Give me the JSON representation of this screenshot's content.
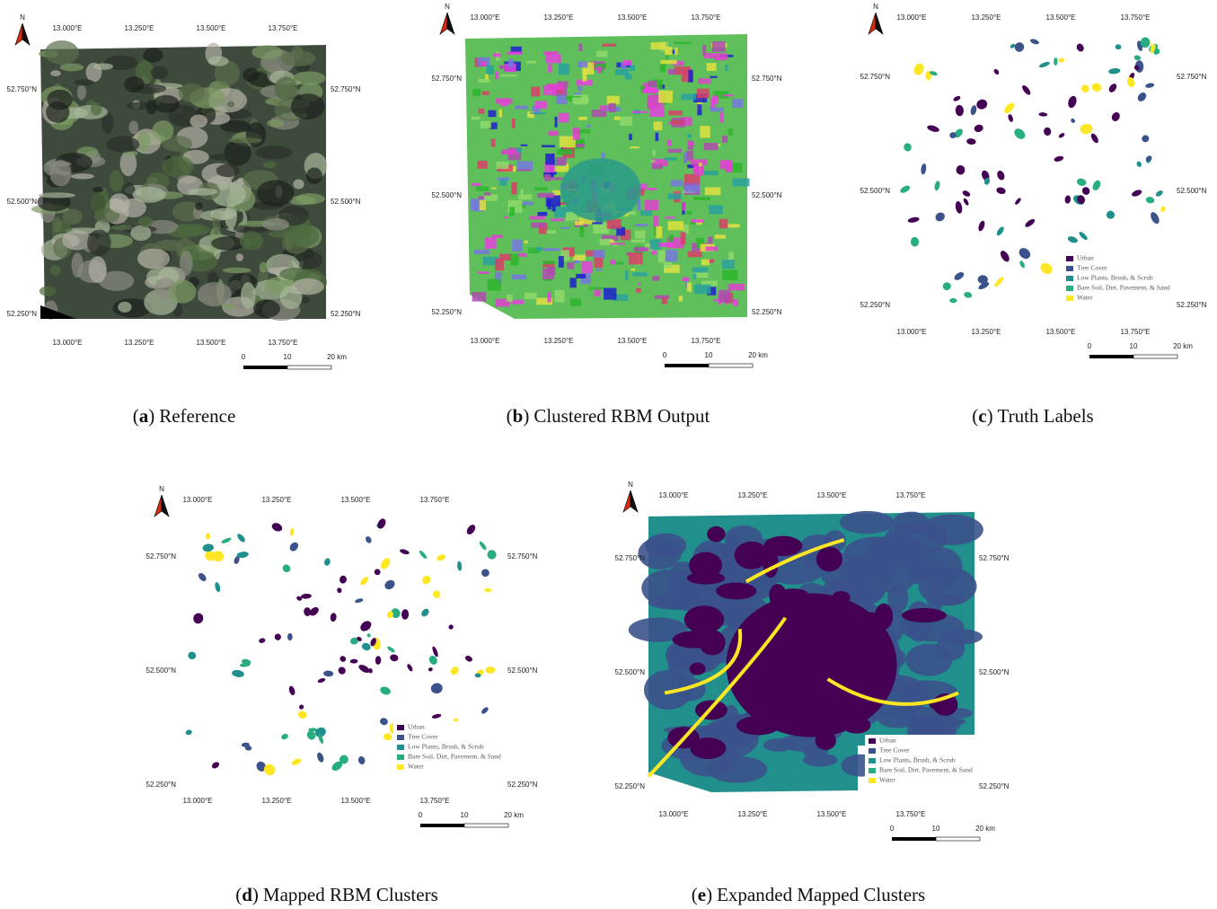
{
  "north": "N",
  "lon_labels": [
    "13.000°E",
    "13.250°E",
    "13.500°E",
    "13.750°E"
  ],
  "lat_labels": [
    "52.750°N",
    "52.500°N",
    "52.250°N"
  ],
  "scale_labels": [
    "0",
    "10",
    "20 km"
  ],
  "legend": [
    {
      "label": "Urban",
      "color": "#440154"
    },
    {
      "label": "Tree Cover",
      "color": "#3b528b"
    },
    {
      "label": "Low Plants, Brush, & Scrub",
      "color": "#21908d"
    },
    {
      "label": "Bare Soil, Dirt, Pavement, & Sand",
      "color": "#27ad81"
    },
    {
      "label": "Water",
      "color": "#fde725"
    }
  ],
  "panels": [
    {
      "style": "reference",
      "caption": [
        "(",
        "a",
        ")",
        "Reference"
      ],
      "legend": false
    },
    {
      "style": "rbm",
      "caption": [
        "(",
        "b",
        ")",
        "Clustered RBM Output"
      ],
      "legend": false
    },
    {
      "style": "patches",
      "caption": [
        "(",
        "c",
        ")",
        "Truth Labels"
      ],
      "legend": true
    },
    {
      "style": "patches",
      "caption": [
        "(",
        "d",
        ")",
        "Mapped RBM Clusters"
      ],
      "legend": true
    },
    {
      "style": "expanded",
      "caption": [
        "(",
        "e",
        ")",
        "Expanded Mapped Clusters"
      ],
      "legend": true
    }
  ]
}
